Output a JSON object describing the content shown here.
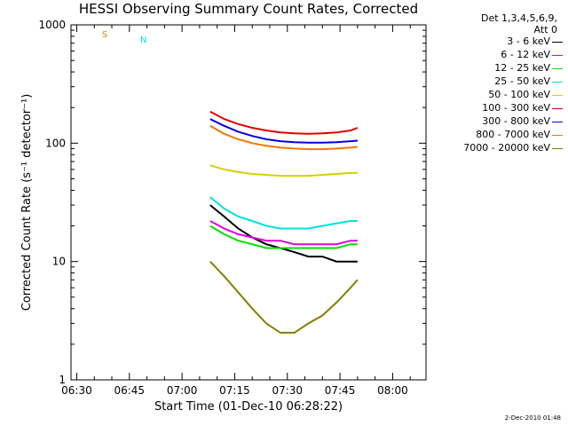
{
  "chart_data": {
    "type": "line",
    "title": "HESSI Observing Summary Count Rates, Corrected",
    "xlabel": "Start Time (01-Dec-10 06:28:22)",
    "ylabel": "Corrected Count Rate (s⁻¹ detector⁻¹)",
    "y_scale": "log",
    "xlim": [
      "06:28:22",
      "08:09:30"
    ],
    "ylim": [
      1,
      1000
    ],
    "x_ticks": [
      "06:30",
      "06:45",
      "07:00",
      "07:15",
      "07:30",
      "07:45",
      "08:00"
    ],
    "y_ticks": [
      "1",
      "10",
      "100",
      "1000"
    ],
    "grid": false,
    "legend_position": "top-right",
    "legend_header": [
      "Det 1,3,4,5,6,9,",
      "Att 0"
    ],
    "series": [
      {
        "name": "3 - 6 keV",
        "color": "#000000",
        "x": [
          "07:08",
          "07:12",
          "07:16",
          "07:20",
          "07:24",
          "07:28",
          "07:32",
          "07:36",
          "07:40",
          "07:44",
          "07:48",
          "07:50"
        ],
        "y": [
          30,
          24,
          19,
          16,
          14,
          13,
          12,
          11,
          11,
          10,
          10,
          10
        ]
      },
      {
        "name": "6 - 12 keV",
        "color": "#e000e0",
        "x": [
          "07:08",
          "07:12",
          "07:16",
          "07:20",
          "07:24",
          "07:28",
          "07:32",
          "07:36",
          "07:40",
          "07:44",
          "07:48",
          "07:50"
        ],
        "y": [
          22,
          19,
          17,
          16,
          15,
          15,
          14,
          14,
          14,
          14,
          15,
          15
        ]
      },
      {
        "name": "12 - 25 keV",
        "color": "#00e000",
        "x": [
          "07:08",
          "07:12",
          "07:16",
          "07:20",
          "07:24",
          "07:28",
          "07:32",
          "07:36",
          "07:40",
          "07:44",
          "07:48",
          "07:50"
        ],
        "y": [
          20,
          17,
          15,
          14,
          13,
          13,
          13,
          13,
          13,
          13,
          14,
          14
        ]
      },
      {
        "name": "25 - 50 keV",
        "color": "#00e0e0",
        "x": [
          "07:08",
          "07:12",
          "07:16",
          "07:20",
          "07:24",
          "07:28",
          "07:32",
          "07:36",
          "07:40",
          "07:44",
          "07:48",
          "07:50"
        ],
        "y": [
          35,
          28,
          24,
          22,
          20,
          19,
          19,
          19,
          20,
          21,
          22,
          22
        ]
      },
      {
        "name": "50 - 100 keV",
        "color": "#d8d000",
        "x": [
          "07:08",
          "07:12",
          "07:16",
          "07:20",
          "07:24",
          "07:28",
          "07:32",
          "07:36",
          "07:40",
          "07:44",
          "07:48",
          "07:50"
        ],
        "y": [
          65,
          60,
          57,
          55,
          54,
          53,
          53,
          53,
          54,
          55,
          56,
          56
        ]
      },
      {
        "name": "100 - 300 keV",
        "color": "#e00000",
        "x": [
          "07:08",
          "07:12",
          "07:16",
          "07:20",
          "07:24",
          "07:28",
          "07:32",
          "07:36",
          "07:40",
          "07:44",
          "07:48",
          "07:50"
        ],
        "y": [
          185,
          160,
          145,
          135,
          128,
          123,
          121,
          120,
          121,
          123,
          128,
          135
        ]
      },
      {
        "name": "300 - 800 keV",
        "color": "#0000e0",
        "x": [
          "07:08",
          "07:12",
          "07:16",
          "07:20",
          "07:24",
          "07:28",
          "07:32",
          "07:36",
          "07:40",
          "07:44",
          "07:48",
          "07:50"
        ],
        "y": [
          160,
          140,
          125,
          115,
          108,
          104,
          102,
          101,
          101,
          102,
          104,
          105
        ]
      },
      {
        "name": "800 - 7000 keV",
        "color": "#f07800",
        "x": [
          "07:08",
          "07:12",
          "07:16",
          "07:20",
          "07:24",
          "07:28",
          "07:32",
          "07:36",
          "07:40",
          "07:44",
          "07:48",
          "07:50"
        ],
        "y": [
          140,
          120,
          108,
          100,
          95,
          92,
          90,
          89,
          89,
          90,
          92,
          93
        ]
      },
      {
        "name": "7000 - 20000 keV",
        "color": "#808000",
        "x": [
          "07:08",
          "07:12",
          "07:16",
          "07:20",
          "07:24",
          "07:28",
          "07:32",
          "07:36",
          "07:40",
          "07:44",
          "07:48",
          "07:50"
        ],
        "y": [
          10,
          7.5,
          5.5,
          4,
          3,
          2.5,
          2.5,
          3,
          3.5,
          4.5,
          6,
          7
        ]
      }
    ],
    "annotations": [
      {
        "label": "S",
        "color": "#f07800"
      },
      {
        "label": "N",
        "color": "#00e0e0"
      }
    ]
  },
  "footer_stamp": "2-Dec-2010 01:48"
}
